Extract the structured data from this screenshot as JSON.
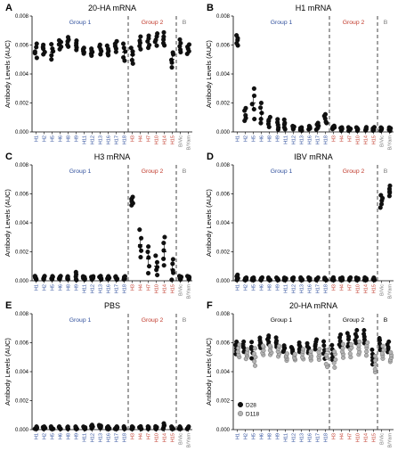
{
  "colors": {
    "group1": "#2f4f9c",
    "group2": "#c0392b",
    "groupB": "#777777",
    "d28": "#111111",
    "d118": "#b3b3b3"
  },
  "chart_data": [
    {
      "panel": "A",
      "type": "scatter",
      "title": "20-HA mRNA",
      "ylabel": "Antibody Levels (AUC)",
      "ylim": [
        0,
        0.008
      ],
      "yticks": [
        "0.000",
        "0.002",
        "0.004",
        "0.006",
        "0.008"
      ],
      "categories": [
        "H1",
        "H2",
        "H5",
        "H6",
        "H8",
        "H9",
        "H11",
        "H12",
        "H13",
        "H16",
        "H17",
        "H18",
        "H3",
        "H4",
        "H7",
        "H10",
        "H14",
        "H15",
        "B/Vic",
        "B/Yam"
      ],
      "groups": [
        {
          "label": "Group 1",
          "key": "group1"
        },
        {
          "label": "Group 2",
          "key": "group2"
        },
        {
          "label": "B",
          "key": "groupB"
        }
      ],
      "values": [
        0.0056,
        0.0057,
        0.0055,
        0.006,
        0.0062,
        0.006,
        0.0056,
        0.0055,
        0.0057,
        0.0056,
        0.0059,
        0.0055,
        0.0053,
        0.0061,
        0.0062,
        0.0064,
        0.0064,
        0.005,
        0.0059,
        0.0057
      ],
      "spread": [
        0.0004,
        0.0003,
        0.0005,
        0.0003,
        0.0003,
        0.0003,
        0.0002,
        0.0002,
        0.0003,
        0.0003,
        0.0003,
        0.0006,
        0.0005,
        0.0004,
        0.0004,
        0.0004,
        0.0004,
        0.0005,
        0.0004,
        0.0003
      ]
    },
    {
      "panel": "B",
      "type": "scatter",
      "title": "H1 mRNA",
      "ylabel": "Antibody Levels (AUC)",
      "ylim": [
        0,
        0.008
      ],
      "yticks": [
        "0.000",
        "0.002",
        "0.004",
        "0.006",
        "0.008"
      ],
      "categories": [
        "H1",
        "H2",
        "H5",
        "H6",
        "H8",
        "H9",
        "H11",
        "H12",
        "H13",
        "H16",
        "H17",
        "H18",
        "H3",
        "H4",
        "H7",
        "H10",
        "H14",
        "H15",
        "B/Vic",
        "B/Yam"
      ],
      "groups": [
        {
          "label": "Group 1",
          "key": "group1"
        },
        {
          "label": "Group 2",
          "key": "group2"
        },
        {
          "label": "B",
          "key": "groupB"
        }
      ],
      "values": [
        0.0063,
        0.0012,
        0.002,
        0.0013,
        0.0007,
        0.0005,
        0.0005,
        0.0003,
        0.0002,
        0.0003,
        0.0004,
        0.0009,
        0.0003,
        0.0002,
        0.0002,
        0.0002,
        0.0002,
        0.0002,
        0.0002,
        0.0002
      ],
      "spread": [
        0.0003,
        0.0004,
        0.0009,
        0.0006,
        0.0003,
        0.0003,
        0.0003,
        0.0001,
        0.0001,
        0.0001,
        0.0002,
        0.0003,
        0.0001,
        0.0001,
        0.0001,
        0.0001,
        0.0001,
        0.0001,
        0.0001,
        0.0001
      ]
    },
    {
      "panel": "C",
      "type": "scatter",
      "title": "H3 mRNA",
      "ylabel": "Antibody Levels (AUC)",
      "ylim": [
        0,
        0.008
      ],
      "yticks": [
        "0.000",
        "0.002",
        "0.004",
        "0.006",
        "0.008"
      ],
      "categories": [
        "H1",
        "H2",
        "H5",
        "H6",
        "H8",
        "H9",
        "H11",
        "H12",
        "H13",
        "H16",
        "H17",
        "H18",
        "H3",
        "H4",
        "H7",
        "H10",
        "H14",
        "H15",
        "B/Vic",
        "B/Yam"
      ],
      "groups": [
        {
          "label": "Group 1",
          "key": "group1"
        },
        {
          "label": "Group 2",
          "key": "group2"
        },
        {
          "label": "B",
          "key": "groupB"
        }
      ],
      "values": [
        0.0002,
        0.0002,
        0.0002,
        0.0002,
        0.0002,
        0.0003,
        0.0002,
        0.0002,
        0.0002,
        0.0002,
        0.0002,
        0.0002,
        0.0055,
        0.0025,
        0.0015,
        0.001,
        0.002,
        0.0008,
        0.0002,
        0.0002
      ],
      "spread": [
        0.0001,
        0.0001,
        0.0001,
        0.0001,
        0.0001,
        0.0003,
        0.0001,
        0.0001,
        0.0001,
        0.0001,
        0.0001,
        0.0001,
        0.0003,
        0.0009,
        0.0008,
        0.0006,
        0.0009,
        0.0006,
        0.0001,
        0.0001
      ]
    },
    {
      "panel": "D",
      "type": "scatter",
      "title": "IBV mRNA",
      "ylabel": "Antibody Levels (AUC)",
      "ylim": [
        0,
        0.008
      ],
      "yticks": [
        "0.000",
        "0.002",
        "0.004",
        "0.006",
        "0.008"
      ],
      "categories": [
        "H1",
        "H2",
        "H5",
        "H6",
        "H8",
        "H9",
        "H11",
        "H12",
        "H13",
        "H16",
        "H17",
        "H18",
        "H3",
        "H4",
        "H7",
        "H10",
        "H14",
        "H15",
        "B/Vic",
        "B/Yam"
      ],
      "groups": [
        {
          "label": "Group 1",
          "key": "group1"
        },
        {
          "label": "Group 2",
          "key": "group2"
        },
        {
          "label": "B",
          "key": "groupB"
        }
      ],
      "values": [
        0.0002,
        0.0001,
        0.0001,
        0.0001,
        0.0001,
        0.0001,
        0.0001,
        0.0001,
        0.0001,
        0.0001,
        0.0001,
        0.0001,
        0.0001,
        0.0001,
        0.0001,
        0.0001,
        0.0001,
        0.0001,
        0.0055,
        0.0062
      ],
      "spread": [
        0.0002,
        0.0001,
        0.0001,
        0.0001,
        0.0001,
        0.0001,
        0.0001,
        0.0001,
        0.0001,
        0.0001,
        0.0001,
        0.0001,
        0.0001,
        0.0001,
        0.0001,
        0.0001,
        0.0001,
        0.0001,
        0.0004,
        0.0003
      ]
    },
    {
      "panel": "E",
      "type": "scatter",
      "title": "PBS",
      "ylabel": "Antibody Levels (AUC)",
      "ylim": [
        0,
        0.008
      ],
      "yticks": [
        "0.000",
        "0.002",
        "0.004",
        "0.006",
        "0.008"
      ],
      "categories": [
        "H1",
        "H2",
        "H5",
        "H6",
        "H8",
        "H9",
        "H11",
        "H12",
        "H13",
        "H16",
        "H17",
        "H18",
        "H3",
        "H4",
        "H7",
        "H10",
        "H14",
        "H15",
        "B/Vic",
        "B/Yam"
      ],
      "groups": [
        {
          "label": "Group 1",
          "key": "group1"
        },
        {
          "label": "Group 2",
          "key": "group2"
        },
        {
          "label": "B",
          "key": "groupB"
        }
      ],
      "values": [
        0.0001,
        0.0001,
        0.0001,
        0.0001,
        0.0001,
        0.0001,
        0.0001,
        0.0002,
        0.0002,
        0.0001,
        0.0001,
        0.0001,
        0.0001,
        0.0001,
        0.0001,
        0.0001,
        0.0002,
        0.0001,
        0.0001,
        0.0001
      ],
      "spread": [
        0.0001,
        0.0001,
        0.0001,
        0.0001,
        0.0001,
        0.0001,
        0.0001,
        0.0001,
        0.0001,
        0.0001,
        0.0001,
        0.0001,
        0.0001,
        0.0001,
        0.0001,
        0.0001,
        0.0002,
        0.0001,
        0.0001,
        0.0001
      ]
    },
    {
      "panel": "F",
      "type": "scatter",
      "title": "20-HA mRNA",
      "ylabel": "Antibody Levels (AUC)",
      "ylim": [
        0,
        0.008
      ],
      "yticks": [
        "0.000",
        "0.002",
        "0.004",
        "0.006",
        "0.008"
      ],
      "categories": [
        "H1",
        "H2",
        "H5",
        "H6",
        "H8",
        "H9",
        "H11",
        "H12",
        "H13",
        "H16",
        "H17",
        "H18",
        "H3",
        "H4",
        "H7",
        "H10",
        "H14",
        "H15",
        "B/Vic",
        "B/Yam"
      ],
      "groups": [
        {
          "label": "Group 1",
          "key": "group1"
        },
        {
          "label": "Group 2",
          "key": "group2"
        },
        {
          "label": "B",
          "key": "groupB"
        }
      ],
      "legend": [
        "D28",
        "D118"
      ],
      "series": [
        {
          "name": "D28",
          "values": [
            0.0056,
            0.0057,
            0.0055,
            0.006,
            0.0062,
            0.006,
            0.0056,
            0.0055,
            0.0057,
            0.0056,
            0.0059,
            0.0055,
            0.0053,
            0.0061,
            0.0062,
            0.0064,
            0.0064,
            0.005,
            0.0059,
            0.0057
          ]
        },
        {
          "name": "D118",
          "values": [
            0.0054,
            0.0052,
            0.005,
            0.0055,
            0.0055,
            0.0054,
            0.005,
            0.005,
            0.0052,
            0.0051,
            0.0052,
            0.0049,
            0.0049,
            0.0054,
            0.0055,
            0.0056,
            0.0056,
            0.0045,
            0.0053,
            0.005
          ]
        }
      ],
      "spread": [
        0.0004,
        0.0003,
        0.0005,
        0.0003,
        0.0003,
        0.0003,
        0.0002,
        0.0002,
        0.0003,
        0.0003,
        0.0003,
        0.0006,
        0.0005,
        0.0004,
        0.0004,
        0.0004,
        0.0004,
        0.0005,
        0.0004,
        0.0003
      ]
    }
  ]
}
